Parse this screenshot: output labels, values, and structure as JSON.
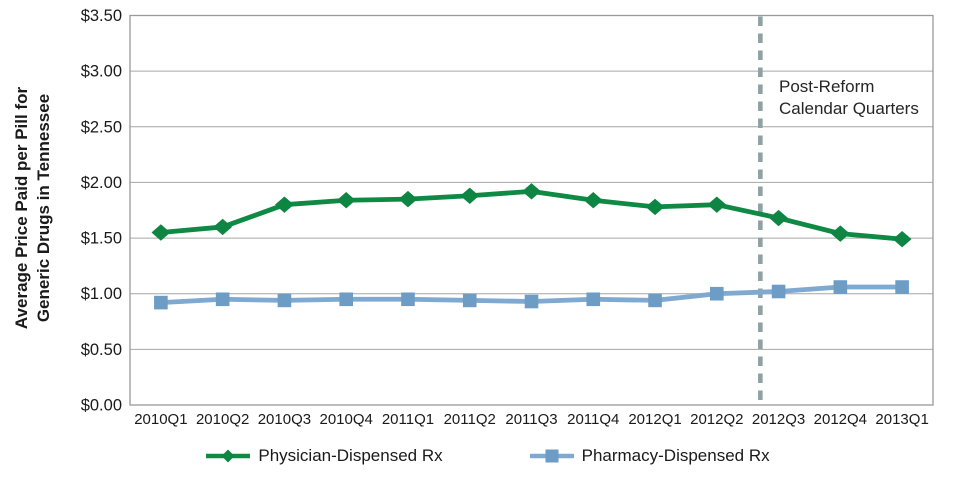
{
  "figure": {
    "y_axis_title_lines": {
      "0": "Average Price Paid per Pill for",
      "1": "Generic Drugs in Tennessee"
    },
    "annotation_lines": {
      "0": "Post-Reform",
      "1": "Calendar Quarters"
    }
  },
  "chart_data": {
    "type": "line",
    "title": "",
    "xlabel": "",
    "ylabel": "Average Price Paid per Pill for Generic Drugs in Tennessee",
    "categories": [
      "2010Q1",
      "2010Q2",
      "2010Q3",
      "2010Q4",
      "2011Q1",
      "2011Q2",
      "2011Q3",
      "2011Q4",
      "2012Q1",
      "2012Q2",
      "2012Q3",
      "2012Q4",
      "2013Q1"
    ],
    "series": [
      {
        "name": "Physician-Dispensed Rx",
        "marker": "diamond",
        "line_color": "#0f8a44",
        "marker_color": "#0e8542",
        "values": [
          1.55,
          1.6,
          1.8,
          1.84,
          1.85,
          1.88,
          1.92,
          1.84,
          1.78,
          1.8,
          1.68,
          1.54,
          1.49
        ]
      },
      {
        "name": "Pharmacy-Dispensed Rx",
        "marker": "square",
        "line_color": "#7fa9d1",
        "marker_color": "#6d9cc4",
        "values": [
          0.92,
          0.95,
          0.94,
          0.95,
          0.95,
          0.94,
          0.93,
          0.95,
          0.94,
          1.0,
          1.02,
          1.06,
          1.06
        ]
      }
    ],
    "ylim": [
      0,
      3.5
    ],
    "ytick_step": 0.5,
    "ytick_labels": [
      "$0.00",
      "$0.50",
      "$1.00",
      "$1.50",
      "$2.00",
      "$2.50",
      "$3.00",
      "$3.50"
    ],
    "grid": "horizontal",
    "grid_color": "#a6a6a6",
    "border_color": "#999999",
    "legend_position": "bottom",
    "reference_line": {
      "style": "dashed",
      "color": "#8fa1a3",
      "after_category": "2012Q2",
      "axis_fraction": 0.785,
      "label": "Post-Reform Calendar Quarters"
    }
  }
}
